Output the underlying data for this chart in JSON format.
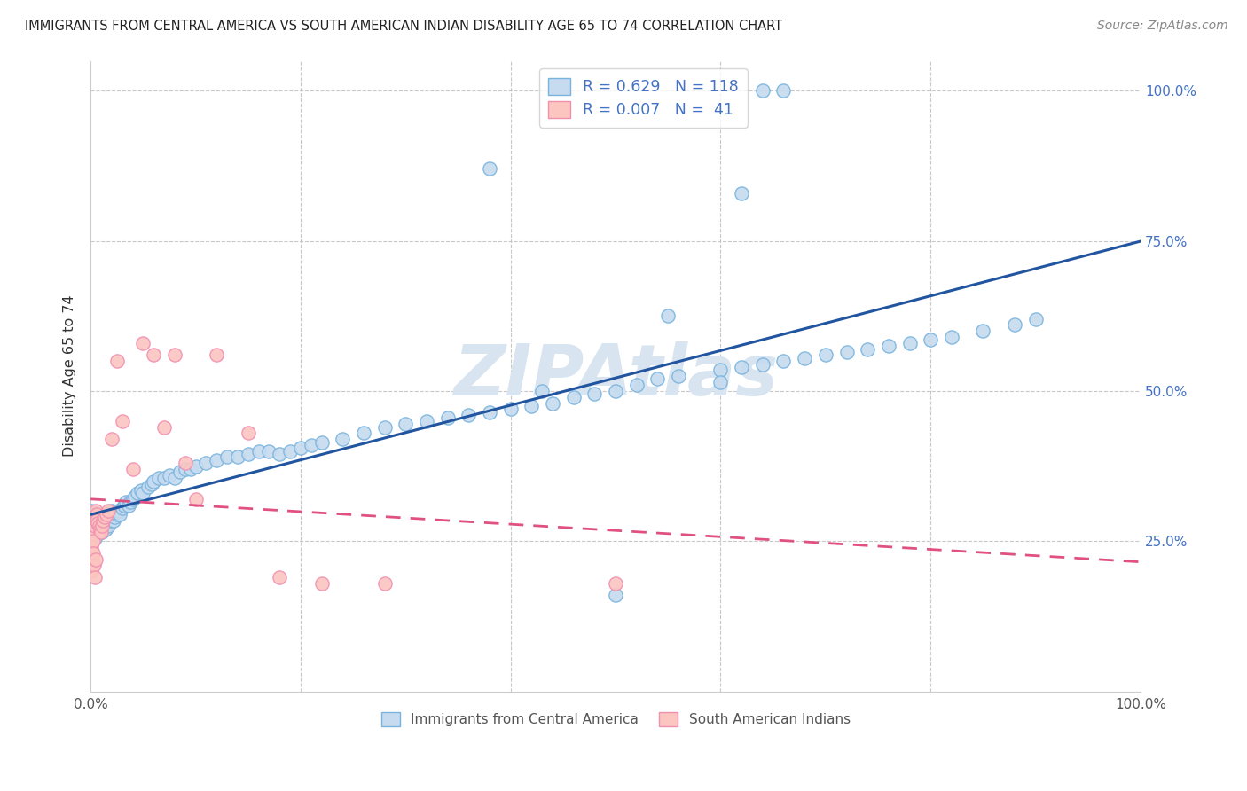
{
  "title": "IMMIGRANTS FROM CENTRAL AMERICA VS SOUTH AMERICAN INDIAN DISABILITY AGE 65 TO 74 CORRELATION CHART",
  "source": "Source: ZipAtlas.com",
  "ylabel": "Disability Age 65 to 74",
  "legend_R1": "0.629",
  "legend_N1": "118",
  "legend_R2": "0.007",
  "legend_N2": " 41",
  "blue_edge": "#7ab4de",
  "blue_fill": "#c6dbef",
  "pink_edge": "#f090b0",
  "pink_fill": "#fcc5c0",
  "line_blue": "#2255a0",
  "line_pink": "#e05080",
  "watermark_color": "#d8e4f0",
  "background_color": "#ffffff",
  "grid_color": "#c8c8c8",
  "blue_x": [
    0.001,
    0.001,
    0.001,
    0.001,
    0.002,
    0.002,
    0.002,
    0.003,
    0.003,
    0.003,
    0.004,
    0.004,
    0.004,
    0.005,
    0.005,
    0.005,
    0.006,
    0.006,
    0.007,
    0.007,
    0.008,
    0.008,
    0.009,
    0.009,
    0.01,
    0.01,
    0.011,
    0.011,
    0.012,
    0.012,
    0.013,
    0.014,
    0.015,
    0.015,
    0.016,
    0.017,
    0.018,
    0.019,
    0.02,
    0.02,
    0.022,
    0.023,
    0.025,
    0.026,
    0.028,
    0.03,
    0.032,
    0.034,
    0.036,
    0.038,
    0.04,
    0.042,
    0.045,
    0.048,
    0.05,
    0.055,
    0.058,
    0.06,
    0.065,
    0.07,
    0.075,
    0.08,
    0.085,
    0.09,
    0.095,
    0.1,
    0.11,
    0.12,
    0.13,
    0.14,
    0.15,
    0.16,
    0.17,
    0.18,
    0.19,
    0.2,
    0.21,
    0.22,
    0.24,
    0.26,
    0.28,
    0.3,
    0.32,
    0.34,
    0.36,
    0.38,
    0.4,
    0.42,
    0.44,
    0.46,
    0.48,
    0.5,
    0.52,
    0.54,
    0.56,
    0.6,
    0.62,
    0.64,
    0.66,
    0.68,
    0.7,
    0.72,
    0.74,
    0.76,
    0.78,
    0.8,
    0.82,
    0.85,
    0.88,
    0.9,
    0.64,
    0.66,
    0.5,
    0.55,
    0.6,
    0.62,
    0.43,
    0.38
  ],
  "blue_y": [
    0.27,
    0.28,
    0.29,
    0.3,
    0.27,
    0.285,
    0.295,
    0.28,
    0.27,
    0.265,
    0.275,
    0.265,
    0.255,
    0.27,
    0.28,
    0.265,
    0.275,
    0.285,
    0.27,
    0.28,
    0.275,
    0.265,
    0.28,
    0.27,
    0.27,
    0.285,
    0.275,
    0.265,
    0.28,
    0.27,
    0.275,
    0.27,
    0.285,
    0.275,
    0.28,
    0.275,
    0.29,
    0.285,
    0.29,
    0.3,
    0.285,
    0.29,
    0.295,
    0.3,
    0.295,
    0.305,
    0.31,
    0.315,
    0.31,
    0.315,
    0.32,
    0.325,
    0.33,
    0.335,
    0.33,
    0.34,
    0.345,
    0.35,
    0.355,
    0.355,
    0.36,
    0.355,
    0.365,
    0.37,
    0.37,
    0.375,
    0.38,
    0.385,
    0.39,
    0.39,
    0.395,
    0.4,
    0.4,
    0.395,
    0.4,
    0.405,
    0.41,
    0.415,
    0.42,
    0.43,
    0.44,
    0.445,
    0.45,
    0.455,
    0.46,
    0.465,
    0.47,
    0.475,
    0.48,
    0.49,
    0.495,
    0.5,
    0.51,
    0.52,
    0.525,
    0.535,
    0.54,
    0.545,
    0.55,
    0.555,
    0.56,
    0.565,
    0.57,
    0.575,
    0.58,
    0.585,
    0.59,
    0.6,
    0.61,
    0.62,
    1.0,
    1.0,
    0.16,
    0.625,
    0.515,
    0.83,
    0.5,
    0.87
  ],
  "pink_x": [
    0.001,
    0.001,
    0.001,
    0.001,
    0.001,
    0.002,
    0.002,
    0.002,
    0.003,
    0.003,
    0.004,
    0.004,
    0.005,
    0.005,
    0.006,
    0.006,
    0.007,
    0.008,
    0.009,
    0.01,
    0.011,
    0.012,
    0.013,
    0.015,
    0.017,
    0.02,
    0.025,
    0.03,
    0.04,
    0.05,
    0.06,
    0.07,
    0.08,
    0.09,
    0.1,
    0.12,
    0.15,
    0.18,
    0.22,
    0.28,
    0.5
  ],
  "pink_y": [
    0.28,
    0.26,
    0.24,
    0.22,
    0.2,
    0.27,
    0.25,
    0.23,
    0.29,
    0.21,
    0.275,
    0.19,
    0.3,
    0.22,
    0.295,
    0.285,
    0.28,
    0.275,
    0.27,
    0.265,
    0.275,
    0.285,
    0.29,
    0.295,
    0.3,
    0.42,
    0.55,
    0.45,
    0.37,
    0.58,
    0.56,
    0.44,
    0.56,
    0.38,
    0.32,
    0.56,
    0.43,
    0.19,
    0.18,
    0.18,
    0.18
  ]
}
